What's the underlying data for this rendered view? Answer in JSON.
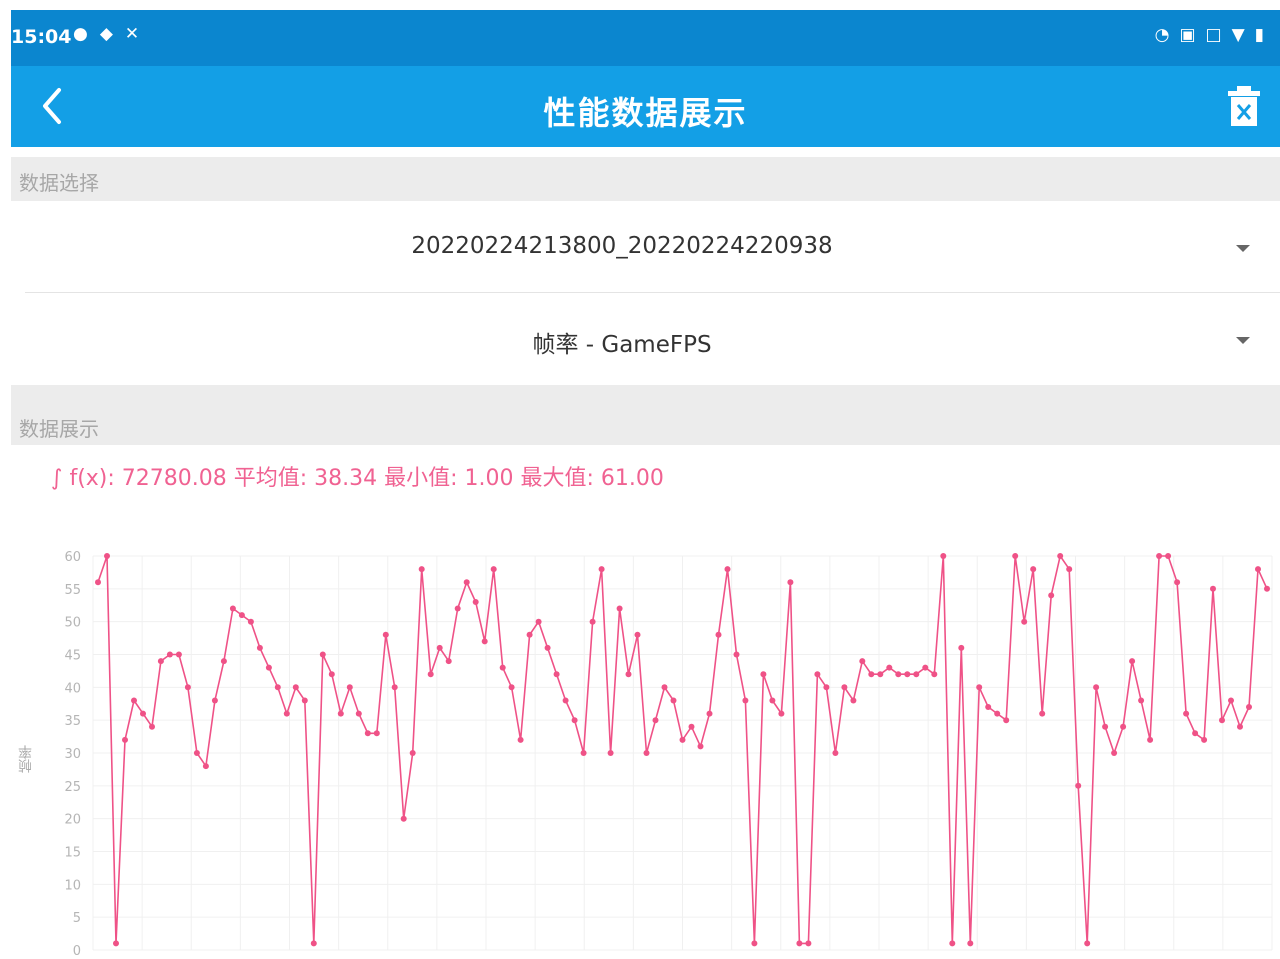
{
  "status_bar": {
    "time": "15:04",
    "left_icons": [
      "location-icon",
      "shield-icon",
      "tools-icon"
    ],
    "right_icons": [
      "speed-icon",
      "nfc-icon",
      "vibrate-icon",
      "wifi-icon",
      "battery-icon"
    ]
  },
  "app_bar": {
    "title": "性能数据展示",
    "back_icon": "chevron-left-icon",
    "delete_icon": "trash-icon"
  },
  "data_select": {
    "header": "数据选择",
    "session": {
      "value": "20220224213800_20220224220938"
    },
    "metric": {
      "value": "帧率 - GameFPS"
    }
  },
  "data_display": {
    "header": "数据展示",
    "stats": "∫ f(x): 72780.08 平均值: 38.34 最小值: 1.00 最大值: 61.00"
  },
  "colors": {
    "status_bar": "#0b86cf",
    "app_bar": "#139fe6",
    "series": "#ef5287"
  },
  "chart_data": {
    "type": "line",
    "ylabel": "帧率",
    "ylim": [
      0,
      60
    ],
    "yticks": [
      "0",
      "5",
      "10",
      "15",
      "20",
      "25",
      "30",
      "35",
      "40",
      "45",
      "50",
      "55",
      "60"
    ],
    "grid": true,
    "series": [
      {
        "values": [
          56,
          60,
          1,
          32,
          38,
          36,
          34,
          44,
          45,
          45,
          40,
          30,
          28,
          38,
          44,
          52,
          51,
          50,
          46,
          43,
          40,
          36,
          40,
          38,
          1,
          45,
          42,
          36,
          40,
          36,
          33,
          33,
          48,
          40,
          20,
          30,
          58,
          42,
          46,
          44,
          52,
          56,
          53,
          47,
          58,
          43,
          40,
          32,
          48,
          50,
          46,
          42,
          38,
          35,
          30,
          50,
          58,
          30,
          52,
          42,
          48,
          30,
          35,
          40,
          38,
          32,
          34,
          31,
          36,
          48,
          58,
          45,
          38,
          1,
          42,
          38,
          36,
          56,
          1,
          1,
          42,
          40,
          30,
          40,
          38,
          44,
          42,
          42,
          43,
          42,
          42,
          42,
          43,
          42,
          60,
          1,
          46,
          1,
          40,
          37,
          36,
          35,
          60,
          50,
          58,
          36,
          54,
          60,
          58,
          25,
          1,
          40,
          34,
          30,
          34,
          44,
          38,
          32,
          60,
          60,
          56,
          36,
          33,
          32,
          55,
          35,
          38,
          34,
          37,
          58,
          55
        ]
      }
    ]
  }
}
